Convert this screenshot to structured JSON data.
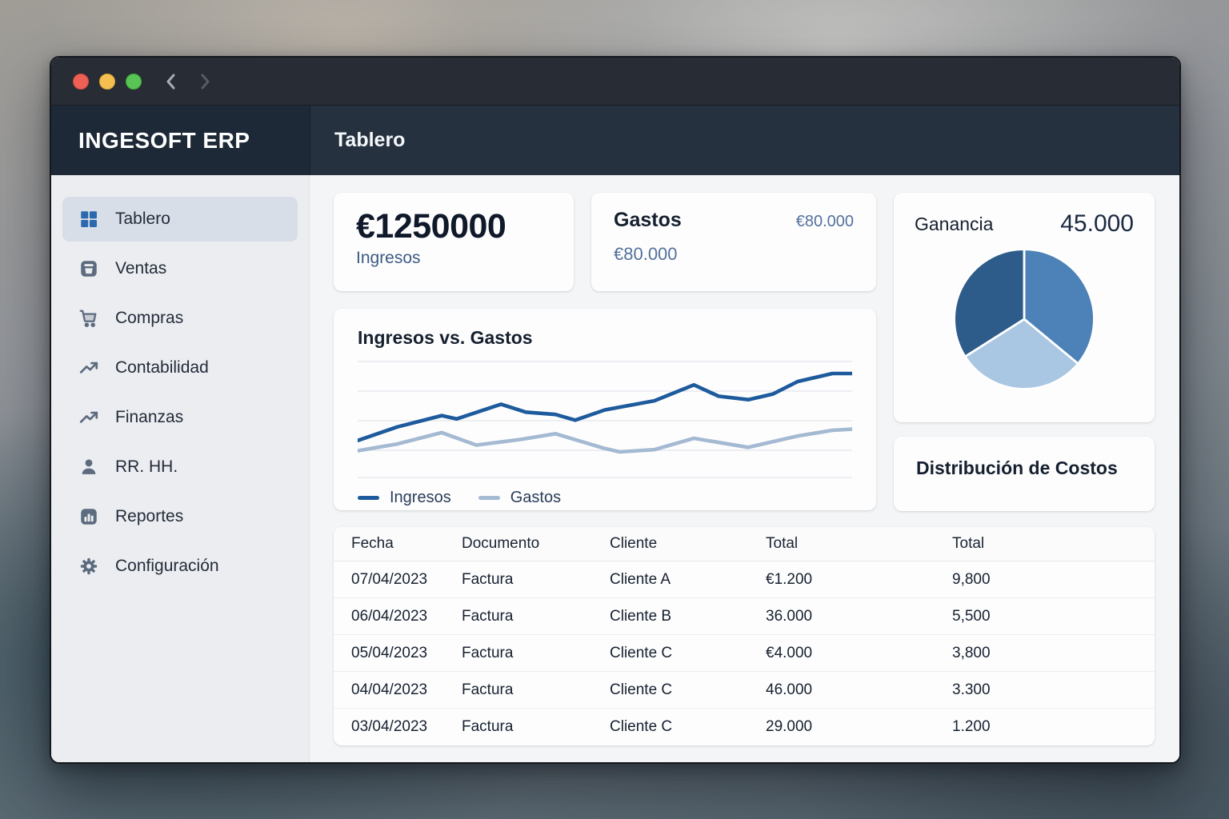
{
  "window_controls": {
    "lights": [
      "close",
      "minimize",
      "zoom"
    ],
    "nav": [
      "back-chevron",
      "forward-chevron"
    ]
  },
  "brand": {
    "logo": "INGESOFT ERP"
  },
  "header": {
    "title": "Tablero"
  },
  "sidebar": {
    "items": [
      {
        "id": "tablero",
        "label": "Tablero",
        "icon": "dashboard-grid-icon",
        "active": true
      },
      {
        "id": "ventas",
        "label": "Ventas",
        "icon": "archive-box-icon",
        "active": false
      },
      {
        "id": "compras",
        "label": "Compras",
        "icon": "shopping-cart-icon",
        "active": false
      },
      {
        "id": "contabilidad",
        "label": "Contabilidad",
        "icon": "trending-up-icon",
        "active": false
      },
      {
        "id": "finanzas",
        "label": "Finanzas",
        "icon": "trending-up-icon",
        "active": false
      },
      {
        "id": "rrhh",
        "label": "RR. HH.",
        "icon": "person-icon",
        "active": false
      },
      {
        "id": "reportes",
        "label": "Reportes",
        "icon": "bar-chart-icon",
        "active": false
      },
      {
        "id": "configuracion",
        "label": "Configuración",
        "icon": "gear-icon",
        "active": false
      }
    ]
  },
  "cards": {
    "ingresos": {
      "value": "€1250000",
      "label": "Ingresos"
    },
    "gastos": {
      "title": "Gastos",
      "value_right": "€80.000",
      "value_sub": "€80.000"
    },
    "costos": {
      "title": "Distribución de Costos"
    }
  },
  "chart_data": [
    {
      "type": "line",
      "title": "Ingresos vs. Gastos",
      "xlabel": "",
      "ylabel": "",
      "axis_tick_labels": "none visible",
      "ylim": [
        0,
        100
      ],
      "grid": true,
      "legend_position": "bottom",
      "series": [
        {
          "name": "Ingresos",
          "color": "#1e5b9d",
          "points": [
            {
              "x": 0,
              "y": 29
            },
            {
              "x": 8,
              "y": 41
            },
            {
              "x": 17,
              "y": 51
            },
            {
              "x": 20,
              "y": 48
            },
            {
              "x": 29,
              "y": 61
            },
            {
              "x": 34,
              "y": 54
            },
            {
              "x": 40,
              "y": 52
            },
            {
              "x": 44,
              "y": 47
            },
            {
              "x": 50,
              "y": 56
            },
            {
              "x": 60,
              "y": 64
            },
            {
              "x": 68,
              "y": 78
            },
            {
              "x": 73,
              "y": 68
            },
            {
              "x": 79,
              "y": 65
            },
            {
              "x": 84,
              "y": 70
            },
            {
              "x": 89,
              "y": 81
            },
            {
              "x": 96,
              "y": 88
            },
            {
              "x": 100,
              "y": 88
            }
          ]
        },
        {
          "name": "Gastos",
          "color": "#a4b9d2",
          "points": [
            {
              "x": 0,
              "y": 20
            },
            {
              "x": 8,
              "y": 26
            },
            {
              "x": 17,
              "y": 36
            },
            {
              "x": 24,
              "y": 25
            },
            {
              "x": 33,
              "y": 30
            },
            {
              "x": 40,
              "y": 35
            },
            {
              "x": 50,
              "y": 22
            },
            {
              "x": 53,
              "y": 19
            },
            {
              "x": 60,
              "y": 21
            },
            {
              "x": 68,
              "y": 31
            },
            {
              "x": 79,
              "y": 23
            },
            {
              "x": 89,
              "y": 33
            },
            {
              "x": 96,
              "y": 38
            },
            {
              "x": 100,
              "y": 39
            }
          ]
        }
      ]
    },
    {
      "type": "pie",
      "title": "Ganancia",
      "value_label": "45.000",
      "legend_position": "none",
      "slices": [
        {
          "name": "segment-1",
          "value": 36,
          "color": "#4d82b8"
        },
        {
          "name": "segment-2",
          "value": 30,
          "color": "#a9c6e2"
        },
        {
          "name": "segment-3",
          "value": 34,
          "color": "#2e5c8a"
        }
      ]
    }
  ],
  "table": {
    "headers": [
      "Fecha",
      "Documento",
      "Cliente",
      "Total",
      "Total"
    ],
    "rows": [
      [
        "07/04/2023",
        "Factura",
        "Cliente A",
        "€1.200",
        "9,800"
      ],
      [
        "06/04/2023",
        "Factura",
        "Cliente B",
        "36.000",
        "5,500"
      ],
      [
        "05/04/2023",
        "Factura",
        "Cliente C",
        "€4.000",
        "3,800"
      ],
      [
        "04/04/2023",
        "Factura",
        "Cliente C",
        "46.000",
        "3.300"
      ],
      [
        "03/04/2023",
        "Factura",
        "Cliente C",
        "29.000",
        "1.200"
      ]
    ]
  },
  "colors": {
    "accent_blue": "#2c68ad",
    "line_ingresos": "#1e5b9d",
    "line_gastos": "#a4b9d2",
    "pie": [
      "#4d82b8",
      "#a9c6e2",
      "#2e5c8a"
    ],
    "traffic_red": "#ee6055",
    "traffic_yellow": "#f5bf4f",
    "traffic_green": "#57c454"
  }
}
